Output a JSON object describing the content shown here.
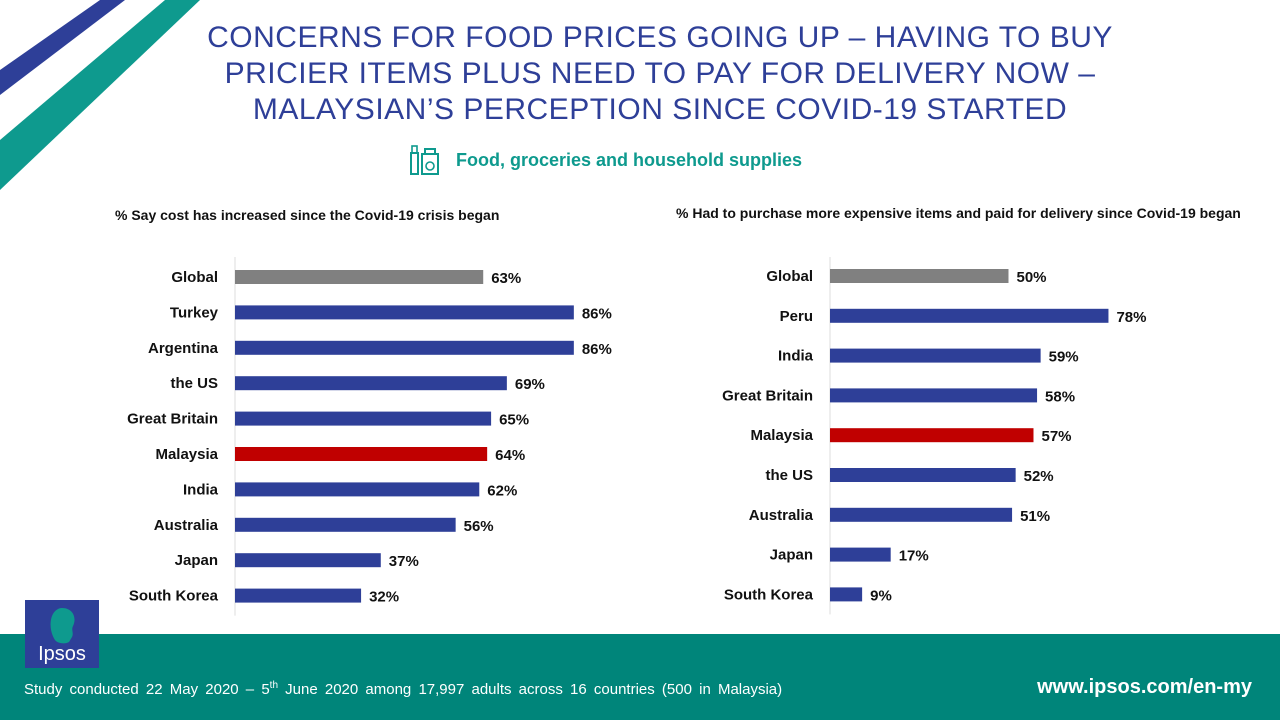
{
  "title": "CONCERNS FOR FOOD PRICES GOING UP – HAVING TO BUY PRICIER ITEMS PLUS NEED TO PAY FOR DELIVERY NOW – MALAYSIAN’S PERCEPTION SINCE COVID-19 STARTED",
  "subtitle": "Food, groceries and household supplies",
  "subtitle_icon": "grocery-bag-icon",
  "colors": {
    "title": "#2e3f98",
    "bar": "#2e3f98",
    "global": "#808080",
    "highlight": "#c00000",
    "teal": "#00857a"
  },
  "footer": {
    "note_prefix": "Study conducted 22 May 2020 – 5",
    "note_sup": "th",
    "note_suffix": " June 2020 among 17,997 adults across 16 countries (500 in Malaysia)",
    "url": "www.ipsos.com/en-my"
  },
  "logo": {
    "text": "Ipsos"
  },
  "chart_data": [
    {
      "type": "bar",
      "orientation": "horizontal",
      "title": "%  Say cost has increased since the Covid-19 crisis began",
      "categories": [
        "Global",
        "Turkey",
        "Argentina",
        "the US",
        "Great Britain",
        "Malaysia",
        "India",
        "Australia",
        "Japan",
        "South Korea"
      ],
      "values": [
        63,
        86,
        86,
        69,
        65,
        64,
        62,
        56,
        37,
        32
      ],
      "labels": [
        "63%",
        "86%",
        "86%",
        "69%",
        "65%",
        "64%",
        "62%",
        "56%",
        "37%",
        "32%"
      ],
      "bar_colors": [
        "#808080",
        "#2e3f98",
        "#2e3f98",
        "#2e3f98",
        "#2e3f98",
        "#c00000",
        "#2e3f98",
        "#2e3f98",
        "#2e3f98",
        "#2e3f98"
      ],
      "xlim": [
        0,
        100
      ]
    },
    {
      "type": "bar",
      "orientation": "horizontal",
      "title": "% Had to purchase more expensive items and paid for delivery since Covid-19 began",
      "categories": [
        "Global",
        "Peru",
        "India",
        "Great Britain",
        "Malaysia",
        "the US",
        "Australia",
        "Japan",
        "South Korea"
      ],
      "values": [
        50,
        78,
        59,
        58,
        57,
        52,
        51,
        17,
        9
      ],
      "labels": [
        "50%",
        "78%",
        "59%",
        "58%",
        "57%",
        "52%",
        "51%",
        "17%",
        "9%"
      ],
      "bar_colors": [
        "#808080",
        "#2e3f98",
        "#2e3f98",
        "#2e3f98",
        "#c00000",
        "#2e3f98",
        "#2e3f98",
        "#2e3f98",
        "#2e3f98"
      ],
      "xlim": [
        0,
        100
      ]
    }
  ]
}
